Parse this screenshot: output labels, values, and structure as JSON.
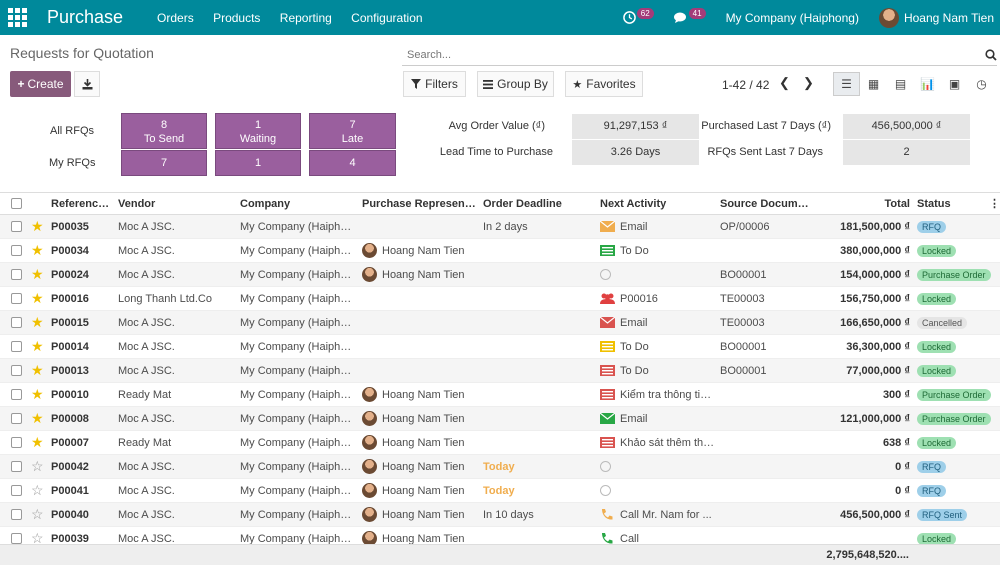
{
  "topbar": {
    "app": "Purchase",
    "menu": [
      "Orders",
      "Products",
      "Reporting",
      "Configuration"
    ],
    "activity_count": "62",
    "message_count": "41",
    "company": "My Company (Haiphong)",
    "user": "Hoang Nam Tien",
    "bg": "#00899b"
  },
  "cp": {
    "breadcrumb": "Requests for Quotation",
    "search_placeholder": "Search...",
    "create": "Create",
    "filters": "Filters",
    "group_by": "Group By",
    "favorites": "Favorites",
    "pager": "1-42 / 42"
  },
  "dash": {
    "all_rfqs": "All RFQs",
    "my_rfqs": "My RFQs",
    "tiles": [
      {
        "all": "8",
        "label": "To Send",
        "my": "7"
      },
      {
        "all": "1",
        "label": "Waiting",
        "my": "1"
      },
      {
        "all": "7",
        "label": "Late",
        "my": "4"
      }
    ],
    "kpis": [
      {
        "label": "Avg Order Value (₫)",
        "value": "91,297,153 ₫"
      },
      {
        "label": "Purchased Last 7 Days (₫)",
        "value": "456,500,000 ₫"
      },
      {
        "label": "Lead Time to Purchase",
        "value": "3.26  Days"
      },
      {
        "label": "RFQs Sent Last 7 Days",
        "value": "2"
      }
    ]
  },
  "columns": [
    "Reference...",
    "Vendor",
    "Company",
    "Purchase Representa...",
    "Order Deadline",
    "Next Activity",
    "Source Document",
    "Total",
    "Status"
  ],
  "rows": [
    {
      "ref": "P00035",
      "star": true,
      "vendor": "Moc A JSC.",
      "company": "My Company (Haiphong)",
      "rep": "",
      "deadline": "In 2 days",
      "act_icon": "email-icon",
      "act_color": "#f0ad4e",
      "activity": "Email",
      "source": "OP/00006",
      "total": "181,500,000 ₫",
      "status": "RFQ",
      "status_bg": "#9ecfe9",
      "status_fg": "#1f5e7d"
    },
    {
      "ref": "P00034",
      "star": true,
      "vendor": "Moc A JSC.",
      "company": "My Company (Haiphong)",
      "rep": "Hoang Nam Tien",
      "deadline": "",
      "act_icon": "todo-icon",
      "act_color": "#28a745",
      "activity": "To Do",
      "source": "",
      "total": "380,000,000 ₫",
      "status": "Locked",
      "status_bg": "#9ee0b2",
      "status_fg": "#1e6b36"
    },
    {
      "ref": "P00024",
      "star": true,
      "vendor": "Moc A JSC.",
      "company": "My Company (Haiphong)",
      "rep": "Hoang Nam Tien",
      "deadline": "",
      "act_icon": "clock-icon",
      "act_color": "",
      "activity": "",
      "source": "BO00001",
      "total": "154,000,000 ₫",
      "status": "Purchase Order",
      "status_bg": "#9ee0b2",
      "status_fg": "#1e6b36"
    },
    {
      "ref": "P00016",
      "star": true,
      "vendor": "Long Thanh Ltd.Co",
      "company": "My Company (Haiphong)",
      "rep": "",
      "deadline": "",
      "act_icon": "users-icon",
      "act_color": "#e04040",
      "activity": "P00016",
      "source": "TE00003",
      "total": "156,750,000 ₫",
      "status": "Locked",
      "status_bg": "#9ee0b2",
      "status_fg": "#1e6b36"
    },
    {
      "ref": "P00015",
      "star": true,
      "vendor": "Moc A JSC.",
      "company": "My Company (Haiphong)",
      "rep": "",
      "deadline": "",
      "act_icon": "email-icon",
      "act_color": "#d9534f",
      "activity": "Email",
      "source": "TE00003",
      "total": "166,650,000 ₫",
      "status": "Cancelled",
      "status_bg": "#e5e5e5",
      "status_fg": "#555"
    },
    {
      "ref": "P00014",
      "star": true,
      "vendor": "Moc A JSC.",
      "company": "My Company (Haiphong)",
      "rep": "",
      "deadline": "",
      "act_icon": "todo-icon",
      "act_color": "#f0c000",
      "activity": "To Do",
      "source": "BO00001",
      "total": "36,300,000 ₫",
      "status": "Locked",
      "status_bg": "#9ee0b2",
      "status_fg": "#1e6b36"
    },
    {
      "ref": "P00013",
      "star": true,
      "vendor": "Moc A JSC.",
      "company": "My Company (Haiphong)",
      "rep": "",
      "deadline": "",
      "act_icon": "todo-icon",
      "act_color": "#d9534f",
      "activity": "To Do",
      "source": "BO00001",
      "total": "77,000,000 ₫",
      "status": "Locked",
      "status_bg": "#9ee0b2",
      "status_fg": "#1e6b36"
    },
    {
      "ref": "P00010",
      "star": true,
      "vendor": "Ready Mat",
      "company": "My Company (Haiphong)",
      "rep": "Hoang Nam Tien",
      "deadline": "",
      "act_icon": "todo-icon",
      "act_color": "#d9534f",
      "activity": "Kiểm tra thông tin...",
      "source": "",
      "total": "300 ₫",
      "status": "Purchase Order",
      "status_bg": "#9ee0b2",
      "status_fg": "#1e6b36"
    },
    {
      "ref": "P00008",
      "star": true,
      "vendor": "Moc A JSC.",
      "company": "My Company (Haiphong)",
      "rep": "Hoang Nam Tien",
      "deadline": "",
      "act_icon": "email-icon",
      "act_color": "#28a745",
      "activity": "Email",
      "source": "",
      "total": "121,000,000 ₫",
      "status": "Purchase Order",
      "status_bg": "#9ee0b2",
      "status_fg": "#1e6b36"
    },
    {
      "ref": "P00007",
      "star": true,
      "vendor": "Ready Mat",
      "company": "My Company (Haiphong)",
      "rep": "Hoang Nam Tien",
      "deadline": "",
      "act_icon": "todo-icon",
      "act_color": "#d9534f",
      "activity": "Khảo sát thêm thông tin",
      "source": "",
      "total": "638 ₫",
      "status": "Locked",
      "status_bg": "#9ee0b2",
      "status_fg": "#1e6b36"
    },
    {
      "ref": "P00042",
      "star": false,
      "vendor": "Moc A JSC.",
      "company": "My Company (Haiphong)",
      "rep": "Hoang Nam Tien",
      "deadline": "Today",
      "act_icon": "clock-icon",
      "act_color": "",
      "activity": "",
      "source": "",
      "total": "0 ₫",
      "status": "RFQ",
      "status_bg": "#9ecfe9",
      "status_fg": "#1f5e7d"
    },
    {
      "ref": "P00041",
      "star": false,
      "vendor": "Moc A JSC.",
      "company": "My Company (Haiphong)",
      "rep": "Hoang Nam Tien",
      "deadline": "Today",
      "act_icon": "clock-icon",
      "act_color": "",
      "activity": "",
      "source": "",
      "total": "0 ₫",
      "status": "RFQ",
      "status_bg": "#9ecfe9",
      "status_fg": "#1f5e7d"
    },
    {
      "ref": "P00040",
      "star": false,
      "vendor": "Moc A JSC.",
      "company": "My Company (Haiphong)",
      "rep": "Hoang Nam Tien",
      "deadline": "In 10 days",
      "act_icon": "phone-icon",
      "act_color": "#f0ad4e",
      "activity": "Call Mr. Nam for ...",
      "source": "",
      "total": "456,500,000 ₫",
      "status": "RFQ Sent",
      "status_bg": "#9ecfe9",
      "status_fg": "#1f5e7d"
    },
    {
      "ref": "P00039",
      "star": false,
      "vendor": "Moc A JSC.",
      "company": "My Company (Haiphong)",
      "rep": "Hoang Nam Tien",
      "deadline": "",
      "act_icon": "phone-icon",
      "act_color": "#28a745",
      "activity": "Call",
      "source": "",
      "total": "",
      "status": "Locked",
      "status_bg": "#9ee0b2",
      "status_fg": "#1e6b36"
    }
  ],
  "footer_total": "2,795,648,520...."
}
